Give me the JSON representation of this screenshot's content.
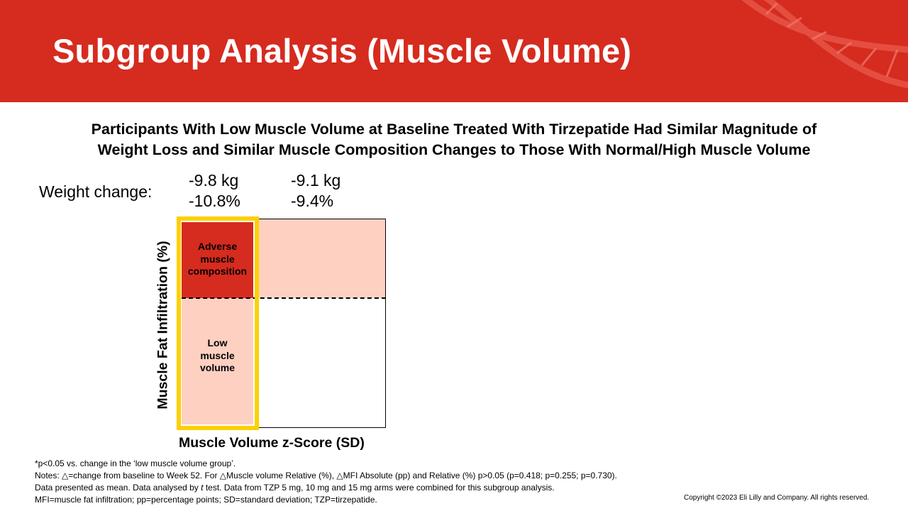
{
  "header": {
    "title": "Subgroup Analysis (Muscle Volume)",
    "background_color": "#d62b1f"
  },
  "subtitle": {
    "line1": "Participants With Low Muscle Volume at Baseline Treated With Tirzepatide Had Similar Magnitude of",
    "line2": "Weight Loss and Similar Muscle Composition Changes to Those With Normal/High Muscle Volume"
  },
  "weight_change": {
    "label": "Weight change:",
    "groups": [
      {
        "kg": "-9.8 kg",
        "percent": "-10.8%"
      },
      {
        "kg": "-9.1 kg",
        "percent": "-9.4%"
      }
    ]
  },
  "diagram": {
    "y_axis_label": "Muscle Fat Infiltration (%)",
    "x_axis_label": "Muscle Volume z-Score (SD)",
    "quadrants": {
      "adverse": {
        "line1": "Adverse",
        "line2": "muscle",
        "line3": "composition",
        "color": "#d62b1f"
      },
      "low_volume": {
        "line1": "Low",
        "line2": "muscle",
        "line3": "volume",
        "color": "#fdd0c2"
      }
    },
    "highlight_color": "#fcd000"
  },
  "footnotes": {
    "line1": "*p<0.05 vs. change in the ‘low muscle volume group’.",
    "line2": "Notes: △=change from baseline to Week 52. For △Muscle volume Relative (%), △MFI Absolute (pp) and Relative (%) p>0.05 (p=0.418; p=0.255; p=0.730).",
    "line3_before": "Data presented as mean. Data analysed by ",
    "line3_italic": "t",
    "line3_after": " test. Data from TZP 5 mg, 10 mg and 15 mg arms were combined for this subgroup analysis.",
    "line4": "MFI=muscle fat infiltration; pp=percentage points; SD=standard deviation; TZP=tirzepatide."
  },
  "copyright": "Copyright ©2023 Eli Lilly and Company. All rights reserved."
}
